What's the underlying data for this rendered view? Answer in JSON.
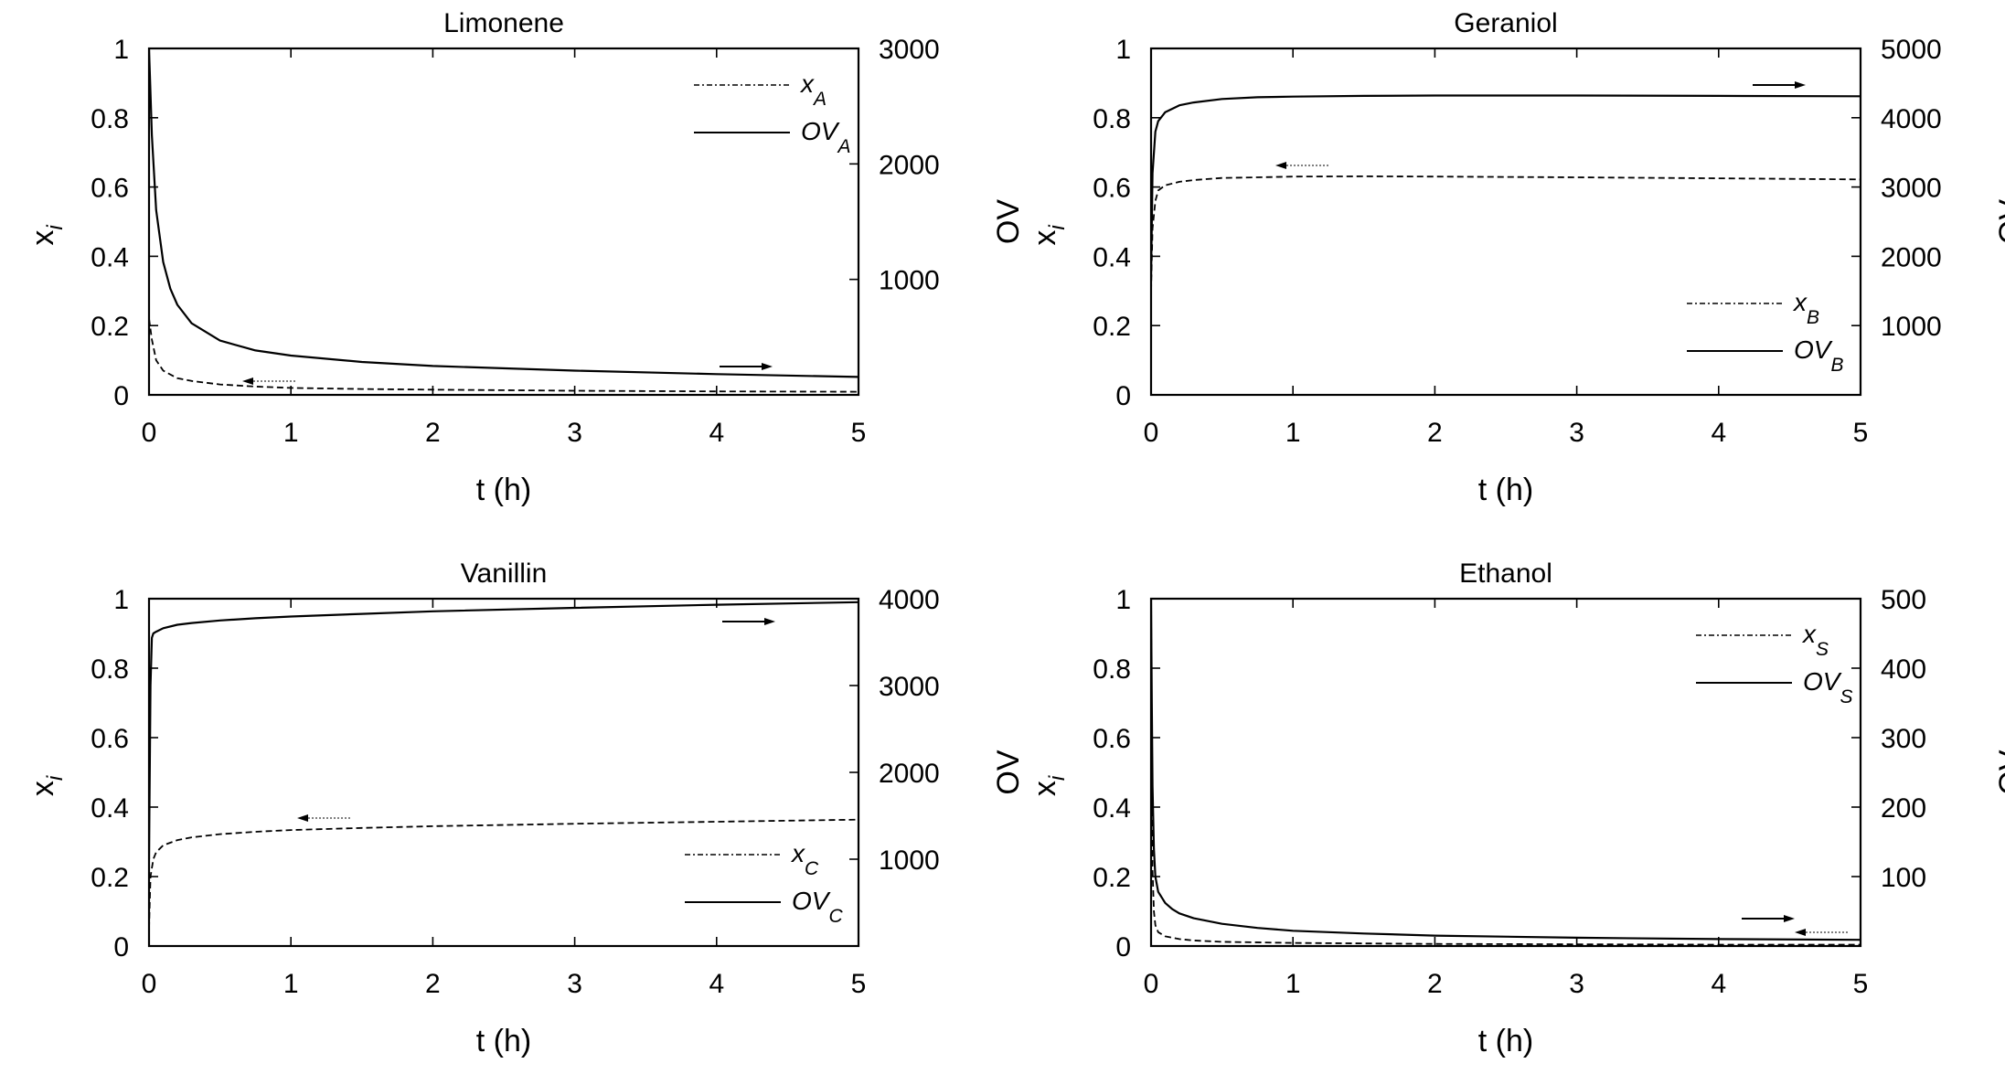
{
  "figure": {
    "panels": [
      "Limonene",
      "Geraniol",
      "Vanillin",
      "Ethanol"
    ]
  },
  "chart_data": [
    {
      "type": "line",
      "title": "Limonene",
      "xlabel": "t (h)",
      "ylabel": "x_i",
      "y2label": "OV",
      "xlim": [
        0,
        5
      ],
      "ylim": [
        0,
        1
      ],
      "y2lim": [
        0,
        3000
      ],
      "xticks": [
        "0",
        "1",
        "2",
        "3",
        "4",
        "5"
      ],
      "yticks": [
        "0",
        "0.2",
        "0.4",
        "0.6",
        "0.8",
        "1"
      ],
      "y2ticks": [
        "1000",
        "2000",
        "3000"
      ],
      "grid": false,
      "legend_position": "upper right",
      "series": [
        {
          "name": "x_A",
          "label_main": "x",
          "label_sub": "A",
          "axis": "left",
          "style": "dashed",
          "x": [
            0,
            0.02,
            0.05,
            0.1,
            0.2,
            0.3,
            0.5,
            0.75,
            1,
            1.5,
            2,
            3,
            4,
            5
          ],
          "values": [
            0.22,
            0.16,
            0.1,
            0.07,
            0.048,
            0.04,
            0.03,
            0.024,
            0.02,
            0.017,
            0.015,
            0.012,
            0.01,
            0.009
          ]
        },
        {
          "name": "OV_A",
          "label_main": "OV",
          "label_sub": "A",
          "axis": "right",
          "style": "solid",
          "x": [
            0,
            0.02,
            0.05,
            0.1,
            0.15,
            0.2,
            0.3,
            0.5,
            0.75,
            1,
            1.5,
            2,
            3,
            4,
            5
          ],
          "values": [
            3000,
            2250,
            1600,
            1150,
            920,
            780,
            620,
            470,
            385,
            340,
            285,
            250,
            210,
            180,
            155
          ]
        }
      ],
      "annotations": [
        "arrow right near OV_A curve (OV axis)",
        "arrow left near x_A curve (x_i axis)"
      ]
    },
    {
      "type": "line",
      "title": "Geraniol",
      "xlabel": "t (h)",
      "ylabel": "x_i",
      "y2label": "OV",
      "xlim": [
        0,
        5
      ],
      "ylim": [
        0,
        1
      ],
      "y2lim": [
        0,
        5000
      ],
      "xticks": [
        "0",
        "1",
        "2",
        "3",
        "4",
        "5"
      ],
      "yticks": [
        "0",
        "0.2",
        "0.4",
        "0.6",
        "0.8",
        "1"
      ],
      "y2ticks": [
        "1000",
        "2000",
        "3000",
        "4000",
        "5000"
      ],
      "grid": false,
      "legend_position": "lower right",
      "series": [
        {
          "name": "x_B",
          "label_main": "x",
          "label_sub": "B",
          "axis": "left",
          "style": "dashed",
          "x": [
            0,
            0.01,
            0.03,
            0.05,
            0.1,
            0.2,
            0.3,
            0.5,
            0.75,
            1,
            1.5,
            2,
            3,
            4,
            5
          ],
          "values": [
            0.3,
            0.48,
            0.56,
            0.59,
            0.605,
            0.615,
            0.62,
            0.626,
            0.628,
            0.63,
            0.631,
            0.63,
            0.628,
            0.625,
            0.622
          ]
        },
        {
          "name": "OV_B",
          "label_main": "OV",
          "label_sub": "B",
          "axis": "right",
          "style": "solid",
          "x": [
            0,
            0.01,
            0.03,
            0.05,
            0.1,
            0.2,
            0.3,
            0.5,
            0.75,
            1,
            1.5,
            2,
            3,
            4,
            5
          ],
          "values": [
            1700,
            3200,
            3800,
            3950,
            4080,
            4180,
            4220,
            4270,
            4295,
            4305,
            4315,
            4320,
            4320,
            4315,
            4310
          ]
        }
      ],
      "annotations": [
        "arrow right near OV_B curve (OV axis)",
        "arrow left near x_B curve (x_i axis)"
      ]
    },
    {
      "type": "line",
      "title": "Vanillin",
      "xlabel": "t (h)",
      "ylabel": "x_i",
      "y2label": "OV",
      "xlim": [
        0,
        5
      ],
      "ylim": [
        0,
        1
      ],
      "y2lim": [
        0,
        4000
      ],
      "xticks": [
        "0",
        "1",
        "2",
        "3",
        "4",
        "5"
      ],
      "yticks": [
        "0",
        "0.2",
        "0.4",
        "0.6",
        "0.8",
        "1"
      ],
      "y2ticks": [
        "1000",
        "2000",
        "3000",
        "4000"
      ],
      "grid": false,
      "legend_position": "lower right",
      "series": [
        {
          "name": "x_C",
          "label_main": "x",
          "label_sub": "C",
          "axis": "left",
          "style": "dashed",
          "x": [
            0,
            0.01,
            0.03,
            0.05,
            0.1,
            0.2,
            0.3,
            0.5,
            0.75,
            1,
            1.5,
            2,
            3,
            4,
            5
          ],
          "values": [
            0.05,
            0.2,
            0.25,
            0.27,
            0.29,
            0.305,
            0.313,
            0.322,
            0.329,
            0.334,
            0.34,
            0.345,
            0.352,
            0.358,
            0.364
          ]
        },
        {
          "name": "OV_C",
          "label_main": "OV",
          "label_sub": "C",
          "axis": "right",
          "style": "solid",
          "x": [
            0,
            0.01,
            0.02,
            0.03,
            0.05,
            0.1,
            0.2,
            0.3,
            0.5,
            0.75,
            1,
            1.5,
            2,
            3,
            4,
            5
          ],
          "values": [
            1000,
            3000,
            3550,
            3600,
            3620,
            3660,
            3700,
            3720,
            3750,
            3775,
            3795,
            3825,
            3855,
            3895,
            3930,
            3960
          ]
        }
      ],
      "annotations": [
        "arrow right near OV_C curve (OV axis)",
        "arrow left near x_C curve (x_i axis)"
      ]
    },
    {
      "type": "line",
      "title": "Ethanol",
      "xlabel": "t (h)",
      "ylabel": "x_i",
      "y2label": "OV",
      "xlim": [
        0,
        5
      ],
      "ylim": [
        0,
        1
      ],
      "y2lim": [
        0,
        500
      ],
      "xticks": [
        "0",
        "1",
        "2",
        "3",
        "4",
        "5"
      ],
      "yticks": [
        "0",
        "0.2",
        "0.4",
        "0.6",
        "0.8",
        "1"
      ],
      "y2ticks": [
        "100",
        "200",
        "300",
        "400",
        "500"
      ],
      "grid": false,
      "legend_position": "upper right",
      "series": [
        {
          "name": "x_S",
          "label_main": "x",
          "label_sub": "S",
          "axis": "left",
          "style": "dashed",
          "x": [
            0,
            0.005,
            0.01,
            0.02,
            0.03,
            0.05,
            0.1,
            0.2,
            0.3,
            0.5,
            1,
            2,
            3,
            4,
            5
          ],
          "values": [
            1.0,
            0.5,
            0.22,
            0.1,
            0.06,
            0.04,
            0.028,
            0.02,
            0.016,
            0.012,
            0.009,
            0.006,
            0.005,
            0.004,
            0.004
          ]
        },
        {
          "name": "OV_S",
          "label_main": "OV",
          "label_sub": "S",
          "axis": "right",
          "style": "solid",
          "x": [
            0,
            0.005,
            0.01,
            0.02,
            0.03,
            0.05,
            0.1,
            0.15,
            0.2,
            0.3,
            0.5,
            0.75,
            1,
            1.5,
            2,
            3,
            4,
            5
          ],
          "values": [
            500,
            350,
            230,
            140,
            100,
            78,
            62,
            53,
            47,
            40,
            32,
            26,
            22,
            18,
            15,
            12,
            10,
            9
          ]
        }
      ],
      "annotations": [
        "arrow right (OV axis) near lower right",
        "arrow left (x_i axis) near lower right"
      ]
    }
  ]
}
